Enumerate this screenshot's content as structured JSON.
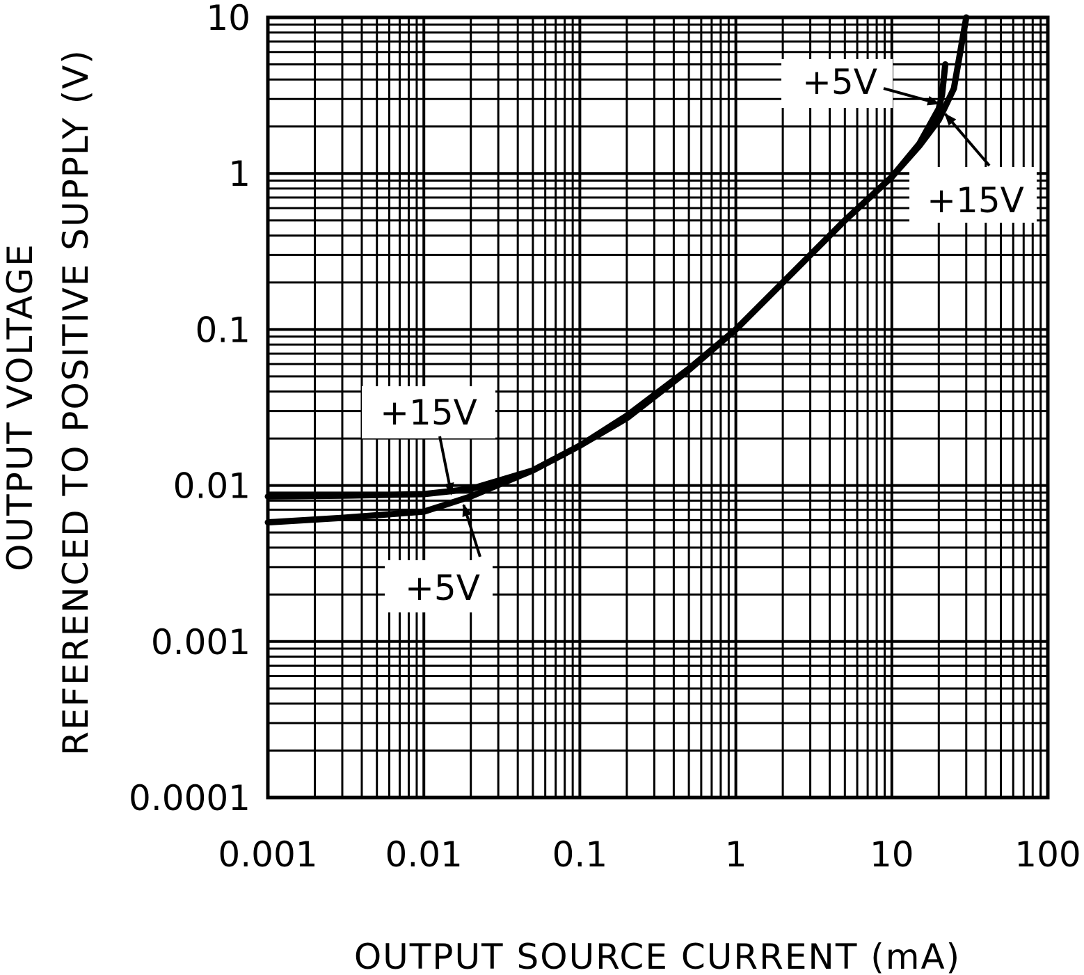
{
  "chart_data": {
    "type": "line",
    "title": "",
    "xlabel": "OUTPUT SOURCE CURRENT (mA)",
    "ylabel_lines": [
      "OUTPUT VOLTAGE",
      "REFERENCED TO POSITIVE SUPPLY (V)"
    ],
    "x_scale": "log",
    "y_scale": "log",
    "xlim": [
      0.001,
      100
    ],
    "ylim": [
      0.0001,
      10
    ],
    "x_ticks": [
      0.001,
      0.01,
      0.1,
      1,
      10,
      100
    ],
    "x_tick_labels": [
      "0.001",
      "0.01",
      "0.1",
      "1",
      "10",
      "100"
    ],
    "y_ticks": [
      0.0001,
      0.001,
      0.01,
      0.1,
      1,
      10
    ],
    "y_tick_labels": [
      "0.0001",
      "0.001",
      "0.01",
      "0.1",
      "1",
      "10"
    ],
    "grid": true,
    "legend": "none",
    "series": [
      {
        "name": "+15V",
        "x": [
          0.001,
          0.003,
          0.01,
          0.02,
          0.05,
          0.1,
          0.2,
          0.5,
          1,
          2,
          5,
          10,
          15,
          20,
          25,
          30
        ],
        "y": [
          0.0085,
          0.0086,
          0.0088,
          0.0095,
          0.0125,
          0.018,
          0.027,
          0.055,
          0.1,
          0.2,
          0.5,
          0.95,
          1.5,
          2.2,
          3.5,
          10
        ]
      },
      {
        "name": "+5V",
        "x": [
          0.001,
          0.003,
          0.01,
          0.02,
          0.05,
          0.1,
          0.2,
          0.5,
          1,
          2,
          5,
          10,
          15,
          20,
          21,
          22
        ],
        "y": [
          0.0058,
          0.0062,
          0.0068,
          0.0085,
          0.0125,
          0.018,
          0.028,
          0.056,
          0.1,
          0.2,
          0.5,
          0.95,
          1.55,
          2.6,
          3.2,
          5
        ]
      }
    ],
    "annotations": [
      {
        "text": "+15V",
        "series": "+15V",
        "arrow_to": [
          0.015,
          0.0088
        ]
      },
      {
        "text": "+5V",
        "series": "+5V",
        "arrow_to": [
          0.018,
          0.0075
        ]
      },
      {
        "text": "+5V",
        "series": "+5V",
        "arrow_to": [
          20,
          2.8
        ]
      },
      {
        "text": "+15V",
        "series": "+15V",
        "arrow_to": [
          22,
          2.4
        ]
      }
    ]
  }
}
